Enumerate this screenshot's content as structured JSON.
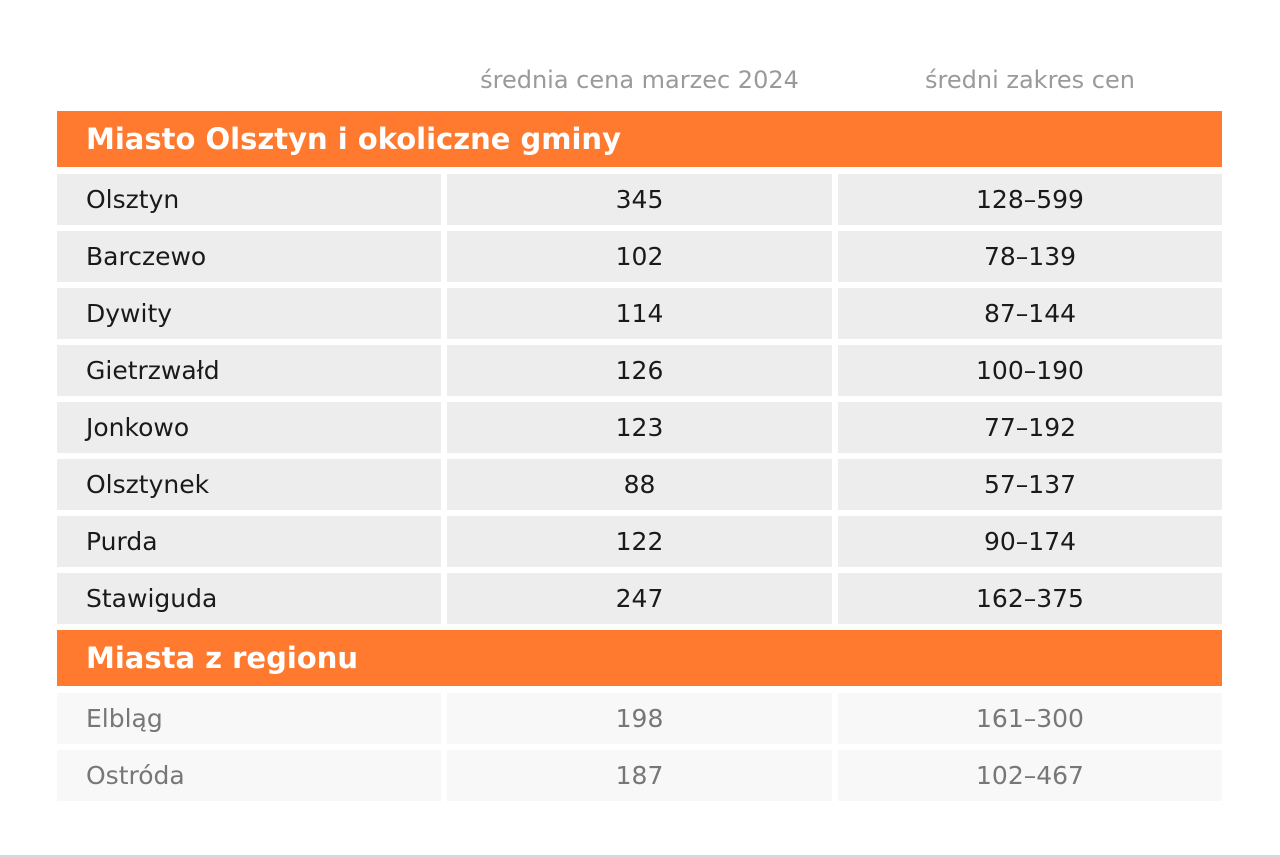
{
  "header": {
    "columns": [
      "średnia cena marzec 2024",
      "średni zakres cen"
    ]
  },
  "sections": [
    {
      "title": "Miasto Olsztyn i okoliczne gminy",
      "rows": [
        [
          "Olsztyn",
          345,
          "128–599"
        ],
        [
          "Barczewo",
          102,
          "78–139"
        ],
        [
          "Dywity",
          114,
          "87–144"
        ],
        [
          "Gietrzwałd",
          126,
          "100–190"
        ],
        [
          "Jonkowo",
          123,
          "77–192"
        ],
        [
          "Olsztynek",
          88,
          "57–137"
        ],
        [
          "Purda",
          122,
          "90–174"
        ],
        [
          "Stawiguda",
          247,
          "162–375"
        ]
      ]
    },
    {
      "title": "Miasta z regionu",
      "rows": [
        [
          "Elbląg",
          198,
          "161–300"
        ],
        [
          "Ostróda",
          187,
          "102–467"
        ]
      ]
    }
  ]
}
